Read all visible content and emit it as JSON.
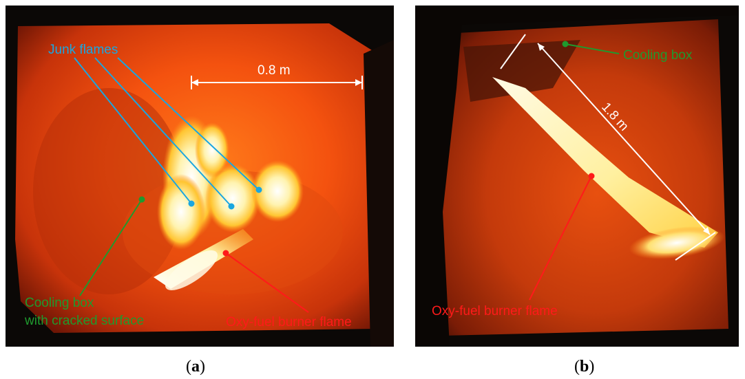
{
  "panel_a": {
    "labels": {
      "junk_flames": "Junk flames",
      "scale": "0.8 m",
      "cooling_box_line1": "Cooling box",
      "cooling_box_line2": "with cracked surface",
      "burner_flame": "Oxy-fuel burner flame"
    },
    "caption": {
      "open": "(",
      "letter": "a",
      "close": ")"
    }
  },
  "panel_b": {
    "labels": {
      "cooling_box": "Cooling box",
      "scale": "1.8 m",
      "burner_flame": "Oxy-fuel burner flame"
    },
    "caption": {
      "open": "(",
      "letter": "b",
      "close": ")"
    }
  },
  "colors": {
    "junk_flames_label": "#1aa6e0",
    "cooling_box_label": "#1f9a2e",
    "burner_flame_label": "#ff1a1a",
    "scale_label": "#ffffff",
    "furnace_hot": "#ff5a12",
    "furnace_dark": "#b5260a",
    "flame_core": "#fffbe6",
    "flame_glow": "#ffd24a"
  }
}
